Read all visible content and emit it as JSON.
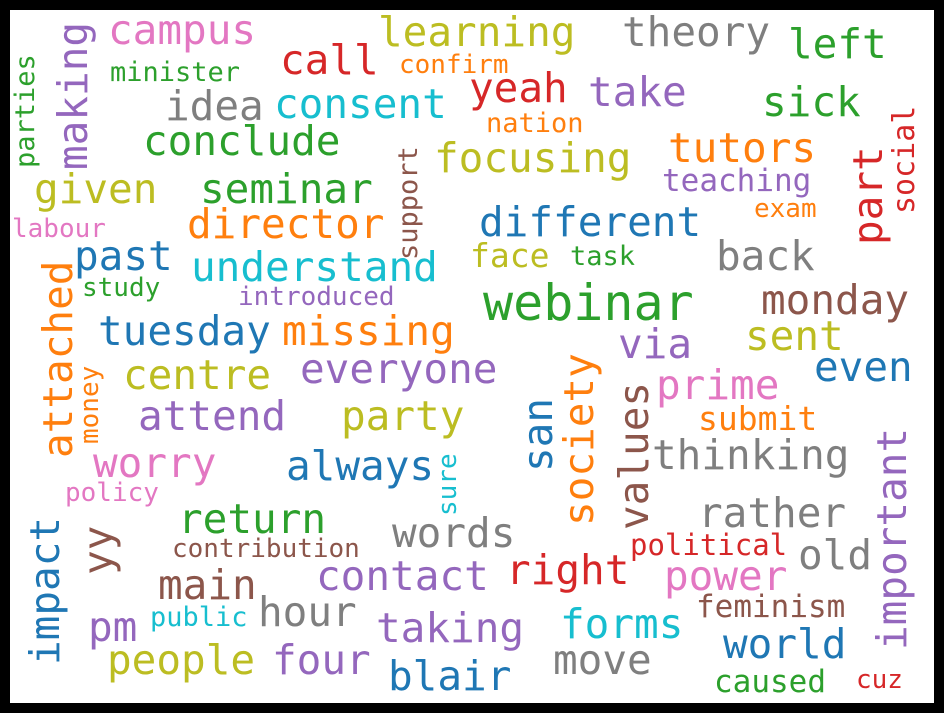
{
  "words": [
    {
      "text": "webinar",
      "color": "#2ca02c"
    },
    {
      "text": "campus",
      "color": "#e377c2"
    },
    {
      "text": "learning",
      "color": "#bcbd22"
    },
    {
      "text": "theory",
      "color": "#7f7f7f"
    },
    {
      "text": "left",
      "color": "#2ca02c"
    },
    {
      "text": "making",
      "color": "#9467bd"
    },
    {
      "text": "call",
      "color": "#d62728"
    },
    {
      "text": "minister",
      "color": "#2ca02c"
    },
    {
      "text": "confirm",
      "color": "#ff7f0e"
    },
    {
      "text": "yeah",
      "color": "#d62728"
    },
    {
      "text": "take",
      "color": "#9467bd"
    },
    {
      "text": "parties",
      "color": "#2ca02c"
    },
    {
      "text": "idea",
      "color": "#7f7f7f"
    },
    {
      "text": "consent",
      "color": "#17becf"
    },
    {
      "text": "sick",
      "color": "#2ca02c"
    },
    {
      "text": "social",
      "color": "#d62728"
    },
    {
      "text": "nation",
      "color": "#ff7f0e"
    },
    {
      "text": "conclude",
      "color": "#2ca02c"
    },
    {
      "text": "support",
      "color": "#8c564b"
    },
    {
      "text": "focusing",
      "color": "#bcbd22"
    },
    {
      "text": "tutors",
      "color": "#ff7f0e"
    },
    {
      "text": "part",
      "color": "#d62728"
    },
    {
      "text": "given",
      "color": "#bcbd22"
    },
    {
      "text": "seminar",
      "color": "#2ca02c"
    },
    {
      "text": "teaching",
      "color": "#9467bd"
    },
    {
      "text": "exam",
      "color": "#ff7f0e"
    },
    {
      "text": "labour",
      "color": "#e377c2"
    },
    {
      "text": "director",
      "color": "#ff7f0e"
    },
    {
      "text": "different",
      "color": "#1f77b4"
    },
    {
      "text": "past",
      "color": "#1f77b4"
    },
    {
      "text": "attached",
      "color": "#ff7f0e"
    },
    {
      "text": "understand",
      "color": "#17becf"
    },
    {
      "text": "face",
      "color": "#bcbd22"
    },
    {
      "text": "task",
      "color": "#2ca02c"
    },
    {
      "text": "back",
      "color": "#7f7f7f"
    },
    {
      "text": "study",
      "color": "#2ca02c"
    },
    {
      "text": "introduced",
      "color": "#9467bd"
    },
    {
      "text": "monday",
      "color": "#8c564b"
    },
    {
      "text": "tuesday",
      "color": "#1f77b4"
    },
    {
      "text": "missing",
      "color": "#ff7f0e"
    },
    {
      "text": "sent",
      "color": "#bcbd22"
    },
    {
      "text": "via",
      "color": "#9467bd"
    },
    {
      "text": "even",
      "color": "#1f77b4"
    },
    {
      "text": "centre",
      "color": "#bcbd22"
    },
    {
      "text": "everyone",
      "color": "#9467bd"
    },
    {
      "text": "society",
      "color": "#ff7f0e"
    },
    {
      "text": "values",
      "color": "#8c564b"
    },
    {
      "text": "prime",
      "color": "#e377c2"
    },
    {
      "text": "money",
      "color": "#ff7f0e"
    },
    {
      "text": "attend",
      "color": "#9467bd"
    },
    {
      "text": "party",
      "color": "#bcbd22"
    },
    {
      "text": "san",
      "color": "#1f77b4"
    },
    {
      "text": "submit",
      "color": "#ff7f0e"
    },
    {
      "text": "important",
      "color": "#9467bd"
    },
    {
      "text": "worry",
      "color": "#e377c2"
    },
    {
      "text": "always",
      "color": "#1f77b4"
    },
    {
      "text": "sure",
      "color": "#17becf"
    },
    {
      "text": "thinking",
      "color": "#7f7f7f"
    },
    {
      "text": "policy",
      "color": "#e377c2"
    },
    {
      "text": "return",
      "color": "#2ca02c"
    },
    {
      "text": "rather",
      "color": "#7f7f7f"
    },
    {
      "text": "impact",
      "color": "#1f77b4"
    },
    {
      "text": "yy",
      "color": "#8c564b"
    },
    {
      "text": "words",
      "color": "#7f7f7f"
    },
    {
      "text": "contribution",
      "color": "#8c564b"
    },
    {
      "text": "political",
      "color": "#d62728"
    },
    {
      "text": "old",
      "color": "#7f7f7f"
    },
    {
      "text": "main",
      "color": "#8c564b"
    },
    {
      "text": "contact",
      "color": "#9467bd"
    },
    {
      "text": "right",
      "color": "#d62728"
    },
    {
      "text": "power",
      "color": "#e377c2"
    },
    {
      "text": "feminism",
      "color": "#8c564b"
    },
    {
      "text": "pm",
      "color": "#9467bd"
    },
    {
      "text": "public",
      "color": "#17becf"
    },
    {
      "text": "hour",
      "color": "#7f7f7f"
    },
    {
      "text": "taking",
      "color": "#9467bd"
    },
    {
      "text": "forms",
      "color": "#17becf"
    },
    {
      "text": "world",
      "color": "#1f77b4"
    },
    {
      "text": "people",
      "color": "#bcbd22"
    },
    {
      "text": "four",
      "color": "#9467bd"
    },
    {
      "text": "blair",
      "color": "#1f77b4"
    },
    {
      "text": "move",
      "color": "#7f7f7f"
    },
    {
      "text": "caused",
      "color": "#2ca02c"
    },
    {
      "text": "cuz",
      "color": "#d62728"
    }
  ]
}
